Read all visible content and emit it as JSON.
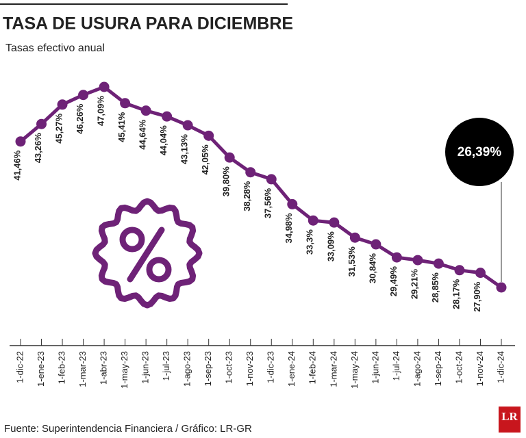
{
  "chart_data": {
    "type": "line",
    "title": "TASA DE USURA PARA DICIEMBRE",
    "subtitle": "Tasas efectivo anual",
    "categories": [
      "1-dic-22",
      "1-ene-23",
      "1-feb-23",
      "1-mar-23",
      "1-abr-23",
      "1-may-23",
      "1-jun-23",
      "1-jul-23",
      "1-ago-23",
      "1-sep-23",
      "1-oct-23",
      "1-nov-23",
      "1-dic-23",
      "1-ene-24",
      "1-feb-24",
      "1-mar-24",
      "1-may-24",
      "1-jun-24",
      "1-jul-24",
      "1-ago-24",
      "1-sep-24",
      "1-oct-24",
      "1-nov-24",
      "1-dic-24"
    ],
    "values": [
      41.46,
      43.26,
      45.27,
      46.26,
      47.09,
      45.41,
      44.64,
      44.04,
      43.13,
      42.05,
      39.8,
      38.28,
      37.56,
      34.98,
      33.3,
      33.09,
      31.53,
      30.84,
      29.49,
      29.21,
      28.85,
      28.17,
      27.9,
      26.39
    ],
    "value_labels": [
      "41,46%",
      "43,26%",
      "45,27%",
      "46,26%",
      "47,09%",
      "45,41%",
      "44,64%",
      "44,04%",
      "43,13%",
      "42,05%",
      "39,80%",
      "38,28%",
      "37,56%",
      "34,98%",
      "33,3%",
      "33,09%",
      "31,53%",
      "30,84%",
      "29,49%",
      "29,21%",
      "28,85%",
      "28,17%",
      "27,90%",
      "26,39%"
    ],
    "color": "#6e2277",
    "source": "Fuente: Superintendencia Financiera / Gráfico: LR-GR"
  },
  "logo": "LR"
}
